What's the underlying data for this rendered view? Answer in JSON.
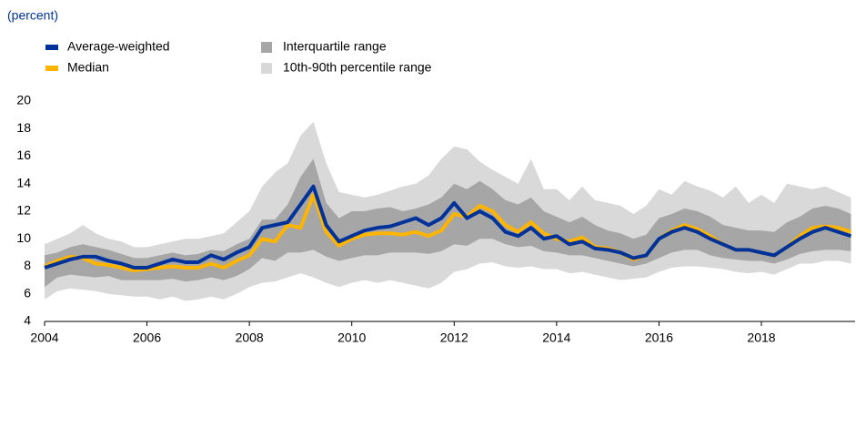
{
  "chart_data": {
    "type": "line",
    "subtitle": "(percent)",
    "x": [
      2004,
      2004.25,
      2004.5,
      2004.75,
      2005,
      2005.25,
      2005.5,
      2005.75,
      2006,
      2006.25,
      2006.5,
      2006.75,
      2007,
      2007.25,
      2007.5,
      2007.75,
      2008,
      2008.25,
      2008.5,
      2008.75,
      2009,
      2009.25,
      2009.5,
      2009.75,
      2010,
      2010.25,
      2010.5,
      2010.75,
      2011,
      2011.25,
      2011.5,
      2011.75,
      2012,
      2012.25,
      2012.5,
      2012.75,
      2013,
      2013.25,
      2013.5,
      2013.75,
      2014,
      2014.25,
      2014.5,
      2014.75,
      2015,
      2015.25,
      2015.5,
      2015.75,
      2016,
      2016.25,
      2016.5,
      2016.75,
      2017,
      2017.25,
      2017.5,
      2017.75,
      2018,
      2018.25,
      2018.5,
      2018.75,
      2019,
      2019.25,
      2019.5,
      2019.75
    ],
    "series": [
      {
        "name": "Average-weighted",
        "color": "#003299",
        "values": [
          7.9,
          8.2,
          8.5,
          8.7,
          8.7,
          8.4,
          8.2,
          7.9,
          7.9,
          8.2,
          8.5,
          8.3,
          8.3,
          8.8,
          8.5,
          9.0,
          9.4,
          10.8,
          11.0,
          11.2,
          12.5,
          13.8,
          11.0,
          9.8,
          10.2,
          10.6,
          10.8,
          10.9,
          11.2,
          11.5,
          11.0,
          11.5,
          12.6,
          11.5,
          12.0,
          11.5,
          10.5,
          10.2,
          10.8,
          10.0,
          10.2,
          9.6,
          9.8,
          9.3,
          9.2,
          9.0,
          8.6,
          8.8,
          10.0,
          10.5,
          10.8,
          10.5,
          10.0,
          9.6,
          9.2,
          9.2,
          9.0,
          8.8,
          9.4,
          10.0,
          10.5,
          10.8,
          10.5,
          10.2
        ]
      },
      {
        "name": "Median",
        "color": "#ffb400",
        "values": [
          8.0,
          8.4,
          8.7,
          8.6,
          8.2,
          8.1,
          7.9,
          7.7,
          7.8,
          7.9,
          8.0,
          7.9,
          7.9,
          8.2,
          7.9,
          8.4,
          8.8,
          10.0,
          9.8,
          11.0,
          10.8,
          13.2,
          10.5,
          9.5,
          10.0,
          10.3,
          10.4,
          10.4,
          10.3,
          10.5,
          10.2,
          10.6,
          11.8,
          11.6,
          12.4,
          12.0,
          11.0,
          10.5,
          11.2,
          10.4,
          10.0,
          9.8,
          10.1,
          9.4,
          9.3,
          9.0,
          8.5,
          8.8,
          10.0,
          10.6,
          11.0,
          10.7,
          10.2,
          9.6,
          9.2,
          9.2,
          9.0,
          8.8,
          9.4,
          10.2,
          10.8,
          10.9,
          10.8,
          10.5
        ]
      },
      {
        "name": "Interquartile range",
        "color": "#a6a6a6",
        "type": "band",
        "low": [
          6.5,
          7.2,
          7.4,
          7.3,
          7.2,
          7.3,
          7.0,
          7.0,
          7.0,
          7.0,
          7.1,
          6.9,
          7.0,
          7.2,
          7.0,
          7.3,
          7.8,
          8.6,
          8.4,
          9.0,
          9.0,
          9.2,
          8.7,
          8.4,
          8.6,
          8.8,
          8.8,
          9.0,
          9.0,
          9.0,
          8.9,
          9.1,
          9.6,
          9.5,
          10.0,
          10.0,
          9.6,
          9.4,
          9.5,
          9.1,
          9.0,
          8.8,
          8.8,
          8.6,
          8.4,
          8.2,
          8.0,
          8.2,
          8.6,
          9.0,
          9.2,
          9.2,
          8.8,
          8.6,
          8.5,
          8.4,
          8.4,
          8.2,
          8.5,
          8.9,
          9.1,
          9.2,
          9.2,
          9.1
        ],
        "high": [
          8.8,
          9.0,
          9.4,
          9.6,
          9.4,
          9.2,
          8.9,
          8.6,
          8.6,
          8.8,
          9.0,
          8.8,
          8.9,
          9.2,
          9.1,
          9.6,
          10.0,
          11.4,
          11.4,
          12.5,
          14.5,
          15.8,
          12.6,
          11.5,
          12.0,
          12.0,
          12.2,
          12.3,
          12.0,
          12.2,
          12.5,
          13.0,
          14.0,
          13.6,
          14.2,
          13.6,
          12.8,
          12.5,
          13.0,
          12.0,
          11.6,
          11.2,
          11.6,
          11.0,
          10.6,
          10.4,
          10.0,
          10.3,
          11.5,
          11.8,
          12.2,
          12.0,
          11.6,
          11.0,
          10.8,
          10.6,
          10.6,
          10.5,
          11.2,
          11.6,
          12.2,
          12.4,
          12.2,
          11.8
        ]
      },
      {
        "name": "10th-90th percentile range",
        "color": "#d9d9d9",
        "type": "band",
        "low": [
          5.6,
          6.2,
          6.4,
          6.3,
          6.2,
          6.0,
          5.9,
          5.8,
          5.8,
          5.6,
          5.8,
          5.5,
          5.6,
          5.8,
          5.6,
          6.0,
          6.5,
          6.8,
          6.9,
          7.2,
          7.5,
          7.2,
          6.8,
          6.5,
          6.8,
          7.0,
          6.8,
          7.0,
          6.8,
          6.6,
          6.4,
          6.8,
          7.6,
          7.8,
          8.2,
          8.3,
          8.0,
          7.9,
          8.0,
          7.8,
          7.8,
          7.5,
          7.6,
          7.4,
          7.2,
          7.0,
          7.1,
          7.2,
          7.6,
          7.9,
          8.0,
          8.0,
          7.9,
          7.8,
          7.6,
          7.5,
          7.6,
          7.4,
          7.8,
          8.2,
          8.2,
          8.4,
          8.4,
          8.2
        ],
        "high": [
          9.6,
          10.0,
          10.4,
          11.0,
          10.4,
          10.0,
          9.8,
          9.4,
          9.4,
          9.6,
          9.8,
          10.0,
          10.0,
          10.2,
          10.4,
          11.2,
          12.0,
          13.8,
          14.8,
          15.5,
          17.5,
          18.5,
          15.5,
          13.4,
          13.2,
          13.0,
          13.2,
          13.5,
          13.8,
          14.0,
          14.6,
          15.8,
          16.7,
          16.5,
          15.6,
          15.0,
          14.5,
          14.0,
          15.8,
          13.6,
          13.6,
          12.8,
          13.8,
          12.8,
          12.6,
          12.4,
          11.8,
          12.4,
          13.6,
          13.2,
          14.2,
          13.8,
          13.5,
          13.0,
          13.8,
          12.6,
          13.2,
          12.6,
          14.0,
          13.8,
          13.6,
          13.8,
          13.4,
          13.0
        ]
      }
    ],
    "xlim": [
      2004,
      2019.83
    ],
    "xticks": [
      2004,
      2006,
      2008,
      2010,
      2012,
      2014,
      2016,
      2018
    ],
    "ylim": [
      4,
      20
    ],
    "yticks": [
      4,
      6,
      8,
      10,
      12,
      14,
      16,
      18,
      20
    ]
  }
}
